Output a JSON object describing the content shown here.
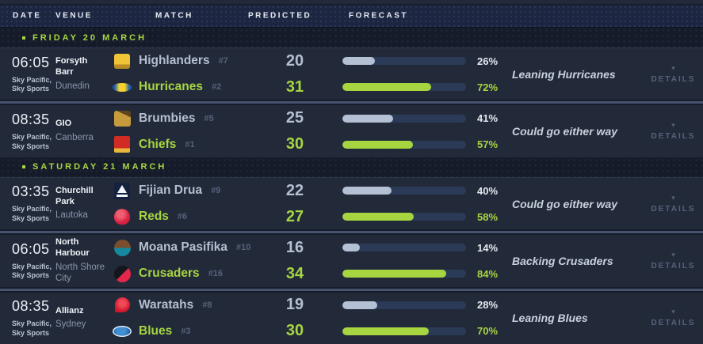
{
  "colors": {
    "accent_green": "#a6d540",
    "bar_track": "#2b3a57",
    "bar_gray_fill": "#b4c0d3",
    "row_bg": "#222a3a",
    "header_bg": "#1d2641"
  },
  "header": {
    "columns": [
      "DATE",
      "VENUE",
      "MATCH",
      "PREDICTED",
      "FORECAST"
    ]
  },
  "ui": {
    "details_label": "DETAILS",
    "chevron_down": "▾"
  },
  "sections": [
    {
      "title": "FRIDAY 20 MARCH",
      "matches": [
        {
          "time": "06:05",
          "channels": "Sky Pacific, Sky Sports",
          "venue_name": "Forsyth Barr",
          "venue_city": "Dunedin",
          "teams": [
            {
              "name": "Highlanders",
              "rank": "#7",
              "score": "20",
              "pct": 26,
              "pct_label": "26%",
              "icon": "highlanders-logo"
            },
            {
              "name": "Hurricanes",
              "rank": "#2",
              "score": "31",
              "pct": 72,
              "pct_label": "72%",
              "icon": "hurricanes-logo"
            }
          ],
          "forecast": "Leaning Hurricanes"
        },
        {
          "time": "08:35",
          "channels": "Sky Pacific, Sky Sports",
          "venue_name": "GIO",
          "venue_city": "Canberra",
          "teams": [
            {
              "name": "Brumbies",
              "rank": "#5",
              "score": "25",
              "pct": 41,
              "pct_label": "41%",
              "icon": "brumbies-logo"
            },
            {
              "name": "Chiefs",
              "rank": "#1",
              "score": "30",
              "pct": 57,
              "pct_label": "57%",
              "icon": "chiefs-logo"
            }
          ],
          "forecast": "Could go either way"
        }
      ]
    },
    {
      "title": "SATURDAY 21 MARCH",
      "matches": [
        {
          "time": "03:35",
          "channels": "Sky Pacific, Sky Sports",
          "venue_name": "Churchill Park",
          "venue_city": "Lautoka",
          "teams": [
            {
              "name": "Fijian Drua",
              "rank": "#9",
              "score": "22",
              "pct": 40,
              "pct_label": "40%",
              "icon": "fijian-drua-logo"
            },
            {
              "name": "Reds",
              "rank": "#6",
              "score": "27",
              "pct": 58,
              "pct_label": "58%",
              "icon": "reds-logo"
            }
          ],
          "forecast": "Could go either way"
        },
        {
          "time": "06:05",
          "channels": "Sky Pacific, Sky Sports",
          "venue_name": "North Harbour",
          "venue_city": "North Shore City",
          "teams": [
            {
              "name": "Moana Pasifika",
              "rank": "#10",
              "score": "16",
              "pct": 14,
              "pct_label": "14%",
              "icon": "moana-pasifika-logo"
            },
            {
              "name": "Crusaders",
              "rank": "#16",
              "score": "34",
              "pct": 84,
              "pct_label": "84%",
              "icon": "crusaders-logo"
            }
          ],
          "forecast": "Backing Crusaders"
        },
        {
          "time": "08:35",
          "channels": "Sky Pacific, Sky Sports",
          "venue_name": "Allianz",
          "venue_city": "Sydney",
          "teams": [
            {
              "name": "Waratahs",
              "rank": "#8",
              "score": "19",
              "pct": 28,
              "pct_label": "28%",
              "icon": "waratahs-logo"
            },
            {
              "name": "Blues",
              "rank": "#3",
              "score": "30",
              "pct": 70,
              "pct_label": "70%",
              "icon": "blues-logo"
            }
          ],
          "forecast": "Leaning Blues"
        }
      ]
    }
  ]
}
